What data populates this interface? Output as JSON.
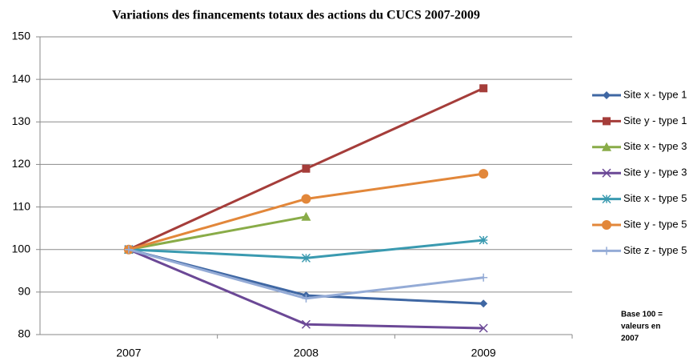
{
  "chart_data": {
    "type": "line",
    "title": "Variations des financements totaux des actions du CUCS 2007-2009",
    "categories": [
      "2007",
      "2008",
      "2009"
    ],
    "series": [
      {
        "name": "Site x - type 1",
        "color": "#3f67a3",
        "marker": "diamond",
        "values": [
          100,
          89.2,
          87.3
        ]
      },
      {
        "name": "Site y - type 1",
        "color": "#a53d3a",
        "marker": "square",
        "values": [
          100,
          119,
          137.9
        ]
      },
      {
        "name": "Site x - type 3",
        "color": "#89ac48",
        "marker": "triangle",
        "values": [
          100,
          107.7,
          null
        ]
      },
      {
        "name": "Site y - type 3",
        "color": "#6b4896",
        "marker": "x",
        "values": [
          100,
          82.4,
          81.5
        ]
      },
      {
        "name": "Site x - type 5",
        "color": "#3a9ab0",
        "marker": "asterisk",
        "values": [
          100,
          98,
          102.2
        ]
      },
      {
        "name": "Site y - type 5",
        "color": "#e2873a",
        "marker": "circle",
        "values": [
          100,
          111.9,
          117.8
        ]
      },
      {
        "name": "Site z - type 5",
        "color": "#94abd6",
        "marker": "plus",
        "values": [
          100,
          88.5,
          93.4
        ]
      }
    ],
    "ylim": [
      80,
      150
    ],
    "yticks": [
      80,
      90,
      100,
      110,
      120,
      130,
      140,
      150
    ],
    "grid": true,
    "legend": "right",
    "annotation": [
      "Base 100 =",
      "valeurs en",
      "2007"
    ]
  }
}
